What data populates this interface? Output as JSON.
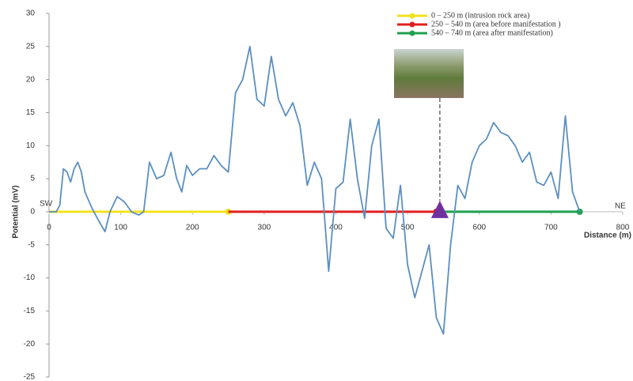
{
  "chart_data": {
    "type": "line",
    "x_label": "Distance (m)",
    "y_label": "Potential  (mV)",
    "left_label": "SW",
    "right_label": "NE",
    "xlim": [
      0,
      800
    ],
    "xticks": [
      0,
      100,
      200,
      300,
      400,
      500,
      600,
      700,
      800
    ],
    "ylim": [
      -25,
      30
    ],
    "yticks": [
      -25,
      -20,
      -15,
      -10,
      -5,
      0,
      5,
      10,
      15,
      20,
      25,
      30
    ],
    "x": [
      0,
      10,
      15,
      20,
      25,
      30,
      35,
      40,
      45,
      50,
      60,
      70,
      78,
      85,
      95,
      105,
      115,
      125,
      132,
      140,
      150,
      160,
      170,
      178,
      185,
      192,
      200,
      210,
      220,
      230,
      240,
      250,
      260,
      270,
      280,
      290,
      300,
      310,
      320,
      330,
      340,
      350,
      360,
      370,
      380,
      390,
      400,
      410,
      420,
      430,
      440,
      450,
      460,
      470,
      480,
      490,
      500,
      510,
      520,
      530,
      540,
      550,
      560,
      570,
      580,
      590,
      600,
      610,
      620,
      630,
      640,
      650,
      660,
      670,
      680,
      690,
      700,
      710,
      720,
      730,
      740
    ],
    "series": [
      {
        "color": "#5b8fc0",
        "values": [
          0,
          0,
          1,
          6.5,
          6,
          4.5,
          6.5,
          7.5,
          6,
          3,
          0.5,
          -1.5,
          -3,
          0,
          2.3,
          1.5,
          0,
          -0.5,
          0,
          7.5,
          5,
          5.5,
          9,
          5,
          3,
          7,
          5.5,
          6.5,
          6.5,
          8.5,
          7,
          6,
          18,
          20,
          25,
          17,
          16,
          23.5,
          17,
          14.5,
          16.5,
          13,
          4,
          7.5,
          5,
          -9,
          3.5,
          4.5,
          14,
          5,
          -1,
          10,
          14,
          -2.5,
          -4,
          4,
          -8,
          -13,
          -9,
          -5,
          -16,
          -18.5,
          -5,
          4,
          2,
          7.5,
          10,
          11,
          13.5,
          12,
          11.5,
          10,
          7.5,
          9,
          4.5,
          4,
          6,
          2,
          14.5,
          3,
          0
        ]
      }
    ],
    "segments": [
      {
        "name": "0 – 250 m (intrusion rock area)",
        "color": "#f2e21e",
        "start": 0,
        "end": 250
      },
      {
        "name": "250 – 540 m (area before manifestation  )",
        "color": "#e0201e",
        "start": 250,
        "end": 540
      },
      {
        "name": "540 – 740 m (area after manifestation)",
        "color": "#1fa050",
        "start": 540,
        "end": 740
      }
    ],
    "marker_x": 545,
    "marker_color": "#7030a0"
  }
}
